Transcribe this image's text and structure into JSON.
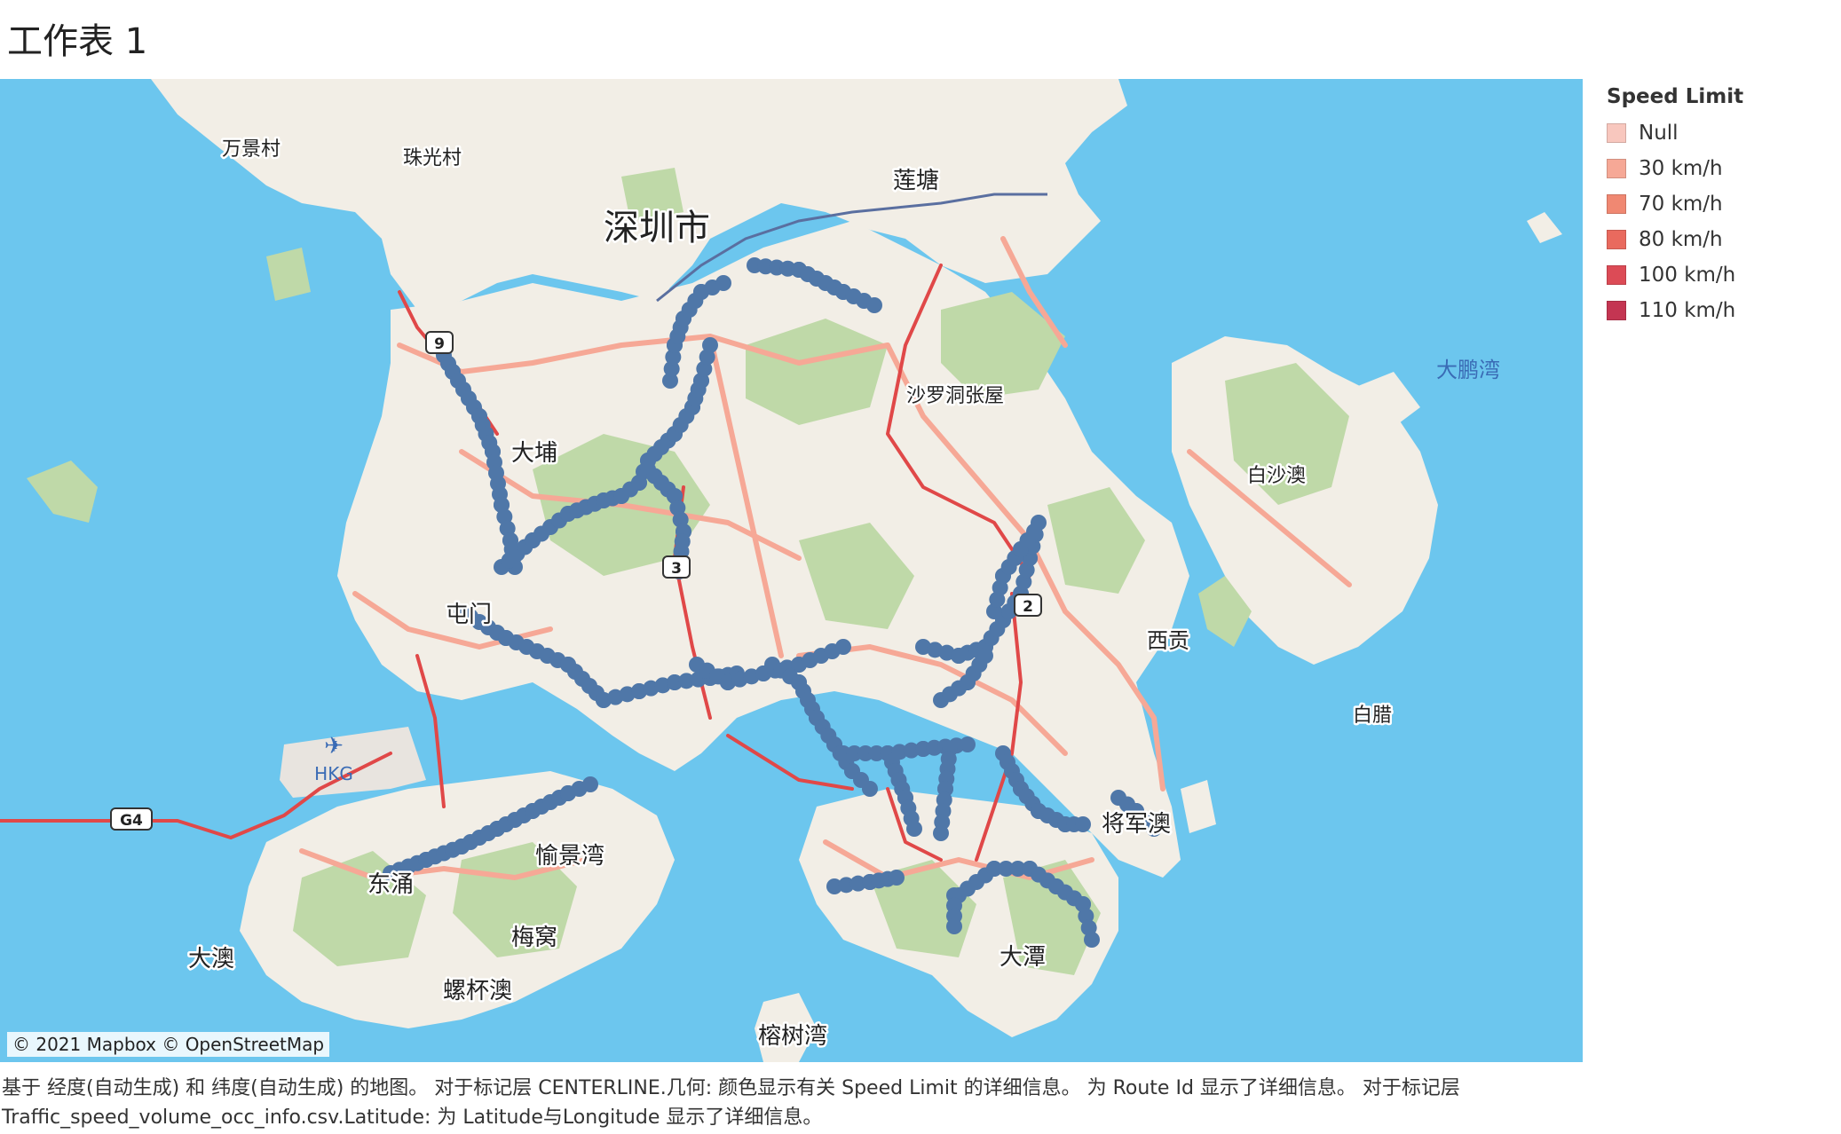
{
  "sheet": {
    "title": "工作表 1"
  },
  "legend": {
    "title": "Speed Limit",
    "items": [
      {
        "label": "Null",
        "color": "#f8c7be"
      },
      {
        "label": "30 km/h",
        "color": "#f6a896"
      },
      {
        "label": "70 km/h",
        "color": "#f08872"
      },
      {
        "label": "80 km/h",
        "color": "#e96a5e"
      },
      {
        "label": "100 km/h",
        "color": "#dc4b56"
      },
      {
        "label": "110 km/h",
        "color": "#c43552"
      }
    ]
  },
  "map": {
    "attribution": "© 2021 Mapbox © OpenStreetMap",
    "colors": {
      "water": "#6cc6ee",
      "land": "#f2eee6",
      "green": "#bfd9a8",
      "road": "#f6a896",
      "highway": "#e04848",
      "route_points": "#4f77a8"
    },
    "place_labels": [
      {
        "id": "shenzhen",
        "text": "深圳市"
      },
      {
        "id": "liantang",
        "text": "莲塘"
      },
      {
        "id": "shaluo",
        "text": "沙罗洞张屋"
      },
      {
        "id": "dapeng",
        "text": "大鹏湾"
      },
      {
        "id": "baisha",
        "text": "白沙澳"
      },
      {
        "id": "xigong",
        "text": "西贡"
      },
      {
        "id": "baila",
        "text": "白腊"
      },
      {
        "id": "yujing",
        "text": "愉景湾"
      },
      {
        "id": "meiwo",
        "text": "梅窝"
      },
      {
        "id": "luobei",
        "text": "螺杯澳"
      },
      {
        "id": "dongyong",
        "text": "东涌"
      },
      {
        "id": "dao",
        "text": "大澳"
      },
      {
        "id": "rongshu",
        "text": "榕树湾"
      },
      {
        "id": "datan",
        "text": "大潭"
      },
      {
        "id": "jiangjun",
        "text": "将军澳"
      },
      {
        "id": "dabu",
        "text": "大埔"
      },
      {
        "id": "tunmen",
        "text": "屯门"
      },
      {
        "id": "zhuguang",
        "text": "珠光村"
      },
      {
        "id": "wanjing",
        "text": "万景村"
      }
    ],
    "airport": {
      "code": "HKG"
    },
    "highway_shield": {
      "text": "G4"
    },
    "road_shields": [
      {
        "text": "3"
      },
      {
        "text": "9"
      },
      {
        "text": "2"
      }
    ]
  },
  "caption": {
    "line1": "基于 经度(自动生成) 和 纬度(自动生成) 的地图。 对于标记层 CENTERLINE.几何: 颜色显示有关 Speed Limit 的详细信息。 为 Route Id 显示了详细信息。 对于标记层",
    "line2": "Traffic_speed_volume_occ_info.csv.Latitude: 为 Latitude与Longitude 显示了详细信息。"
  }
}
